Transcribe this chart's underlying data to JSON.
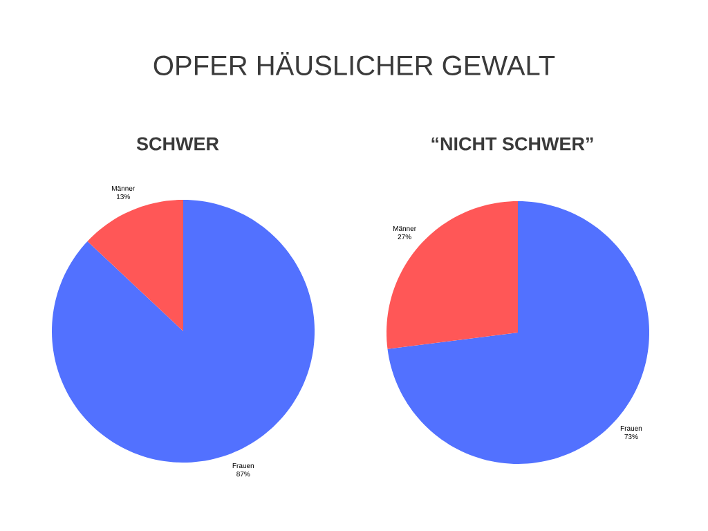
{
  "chart_data": [
    {
      "type": "pie",
      "title": "OPFER HÄUSLICHER GEWALT",
      "subtitle": "SCHWER",
      "categories": [
        "Frauen",
        "Männer"
      ],
      "values": [
        87,
        13
      ],
      "value_labels": [
        "87%",
        "13%"
      ],
      "colors": [
        "#5271ff",
        "#ff5757"
      ]
    },
    {
      "type": "pie",
      "subtitle": "“NICHT SCHWER”",
      "categories": [
        "Frauen",
        "Männer"
      ],
      "values": [
        73,
        27
      ],
      "value_labels": [
        "73%",
        "27%"
      ],
      "colors": [
        "#5271ff",
        "#ff5757"
      ]
    }
  ]
}
